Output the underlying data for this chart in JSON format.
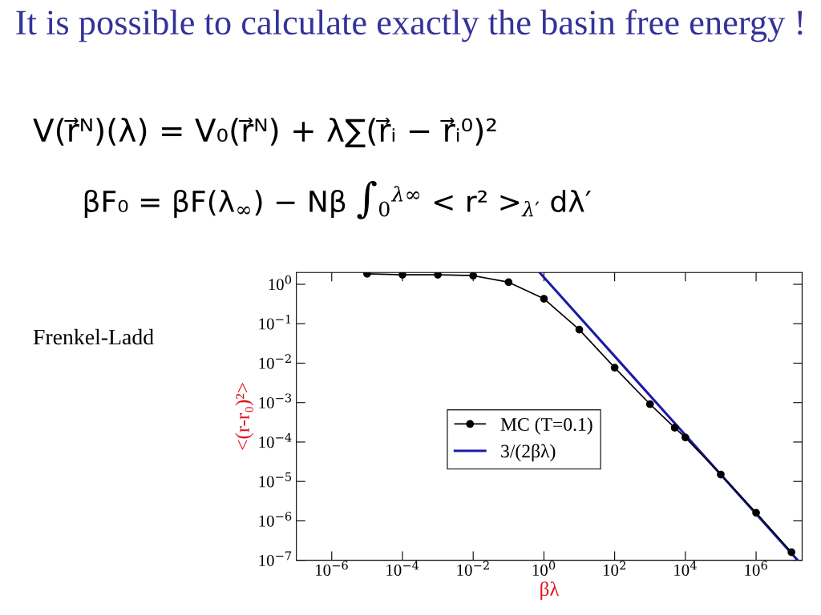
{
  "chart_data": {
    "type": "line",
    "title": "It is possible to calculate exactly the basin free energy !",
    "xlabel": "βλ",
    "ylabel": "<(r-r₀)²>",
    "annotations": [
      "V(r⃗ᴺ)(λ) = V₀(r⃗ᴺ) + λ∑(r⃗ᵢ − r⃗ᵢ⁰)²",
      "βF₀ = βF(λ$_{∞}$) − Nβ ∫$_{0}$$^{λ∞}$ < r² >$_{λ′}$ dλ′",
      "Frenkel-Ladd"
    ],
    "log": "xy",
    "xlim": [
      1e-07,
      20000000.0
    ],
    "ylim": [
      1e-07,
      2
    ],
    "xticks": [
      {
        "value": 1e-06,
        "label": "10$^{−6}$"
      },
      {
        "value": 0.0001,
        "label": "10$^{−4}$"
      },
      {
        "value": 0.01,
        "label": "10$^{−2}$"
      },
      {
        "value": 1,
        "label": "10$^{0}$"
      },
      {
        "value": 100,
        "label": "10$^{2}$"
      },
      {
        "value": 10000,
        "label": "10$^{4}$"
      },
      {
        "value": 1000000,
        "label": "10$^{6}$"
      }
    ],
    "yticks": [
      {
        "value": 1e-07,
        "label": "10$^{−7}$"
      },
      {
        "value": 1e-06,
        "label": "10$^{−6}$"
      },
      {
        "value": 1e-05,
        "label": "10$^{−5}$"
      },
      {
        "value": 0.0001,
        "label": "10$^{−4}$"
      },
      {
        "value": 0.001,
        "label": "10$^{−3}$"
      },
      {
        "value": 0.01,
        "label": "10$^{−2}$"
      },
      {
        "value": 0.1,
        "label": "10$^{−1}$"
      },
      {
        "value": 1,
        "label": "10$^{0}$"
      }
    ],
    "grid": false,
    "legend": "center",
    "series": [
      {
        "name": "MC (T=0.1)",
        "color": "#000000",
        "marker": "circle",
        "x": [
          1e-05,
          0.0001,
          0.001,
          0.01,
          0.1,
          1,
          10,
          100,
          1000,
          5000,
          10000,
          100000,
          1000000,
          10000000
        ],
        "values": [
          1.85,
          1.75,
          1.75,
          1.66,
          1.13,
          0.43,
          0.071,
          0.0077,
          0.00091,
          0.00023,
          0.00013,
          1.5e-05,
          1.6e-06,
          1.6e-07
        ]
      },
      {
        "name": "3/(2βλ)",
        "color": "#1a1aa6",
        "marker": "none",
        "x": [
          0.75,
          15000000
        ],
        "values": [
          2,
          1e-07
        ]
      }
    ]
  }
}
